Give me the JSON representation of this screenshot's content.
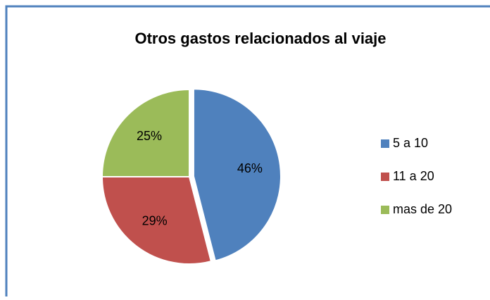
{
  "chart_data": {
    "type": "pie",
    "title": "Otros gastos relacionados al viaje",
    "categories": [
      "5 a 10",
      "11 a 20",
      "mas de 20"
    ],
    "values": [
      46,
      29,
      25
    ],
    "value_labels": [
      "46%",
      "29%",
      "25%"
    ],
    "colors": [
      "#4f81bd",
      "#c0504d",
      "#9bbb59"
    ],
    "legend": "right"
  }
}
